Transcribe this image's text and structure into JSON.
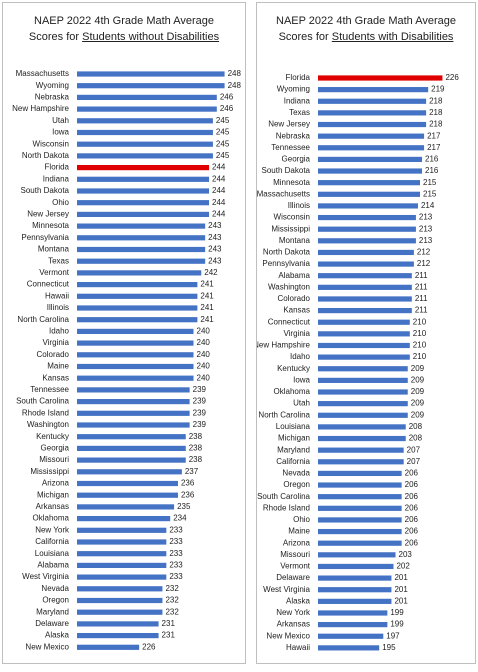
{
  "chart_data": [
    {
      "type": "bar",
      "orientation": "horizontal",
      "title": "NAEP 2022 4th Grade Math Average Scores for",
      "title_underlined": "Students without Disabilities",
      "categories": [
        "Massachusetts",
        "Wyoming",
        "Nebraska",
        "New Hampshire",
        "Utah",
        "Iowa",
        "Wisconsin",
        "North Dakota",
        "Florida",
        "Indiana",
        "South Dakota",
        "Ohio",
        "New Jersey",
        "Minnesota",
        "Pennsylvania",
        "Montana",
        "Texas",
        "Vermont",
        "Connecticut",
        "Hawaii",
        "Illinois",
        "North Carolina",
        "Idaho",
        "Virginia",
        "Colorado",
        "Maine",
        "Kansas",
        "Tennessee",
        "South Carolina",
        "Rhode Island",
        "Washington",
        "Kentucky",
        "Georgia",
        "Missouri",
        "Mississippi",
        "Arizona",
        "Michigan",
        "Arkansas",
        "Oklahoma",
        "New York",
        "California",
        "Louisiana",
        "Alabama",
        "West Virginia",
        "Nevada",
        "Oregon",
        "Maryland",
        "Delaware",
        "Alaska",
        "New Mexico"
      ],
      "values": [
        248,
        248,
        246,
        246,
        245,
        245,
        245,
        245,
        244,
        244,
        244,
        244,
        244,
        243,
        243,
        243,
        243,
        242,
        241,
        241,
        241,
        241,
        240,
        240,
        240,
        240,
        240,
        239,
        239,
        239,
        239,
        238,
        238,
        238,
        237,
        236,
        236,
        235,
        234,
        233,
        233,
        233,
        233,
        233,
        232,
        232,
        232,
        231,
        231,
        226
      ],
      "color": "#4472c4",
      "highlight": "Florida",
      "highlight_color": "#e00000",
      "xlim": [
        210,
        253
      ]
    },
    {
      "type": "bar",
      "orientation": "horizontal",
      "title": "NAEP 2022 4th Grade Math Average Scores for",
      "title_underlined": "Students with Disabilities",
      "categories": [
        "Florida",
        "Wyoming",
        "Indiana",
        "Texas",
        "New Jersey",
        "Nebraska",
        "Tennessee",
        "Georgia",
        "South Dakota",
        "Minnesota",
        "Massachusetts",
        "Illinois",
        "Wisconsin",
        "Mississippi",
        "Montana",
        "North Dakota",
        "Pennsylvania",
        "Alabama",
        "Washington",
        "Colorado",
        "Kansas",
        "Connecticut",
        "Virginia",
        "New Hampshire",
        "Idaho",
        "Kentucky",
        "Iowa",
        "Oklahoma",
        "Utah",
        "North Carolina",
        "Louisiana",
        "Michigan",
        "Maryland",
        "California",
        "Nevada",
        "Oregon",
        "South Carolina",
        "Rhode Island",
        "Ohio",
        "Maine",
        "Arizona",
        "Missouri",
        "Vermont",
        "Delaware",
        "West Virginia",
        "Alaska",
        "New York",
        "Arkansas",
        "New Mexico",
        "Hawaii"
      ],
      "values": [
        226,
        219,
        218,
        218,
        218,
        217,
        217,
        216,
        216,
        215,
        215,
        214,
        213,
        213,
        213,
        212,
        212,
        211,
        211,
        211,
        211,
        210,
        210,
        210,
        210,
        209,
        209,
        209,
        209,
        209,
        208,
        208,
        207,
        207,
        206,
        206,
        206,
        206,
        206,
        206,
        206,
        203,
        202,
        201,
        201,
        201,
        199,
        199,
        197,
        195
      ],
      "color": "#4472c4",
      "highlight": "Florida",
      "highlight_color": "#e00000",
      "xlim": [
        165,
        240
      ]
    }
  ]
}
